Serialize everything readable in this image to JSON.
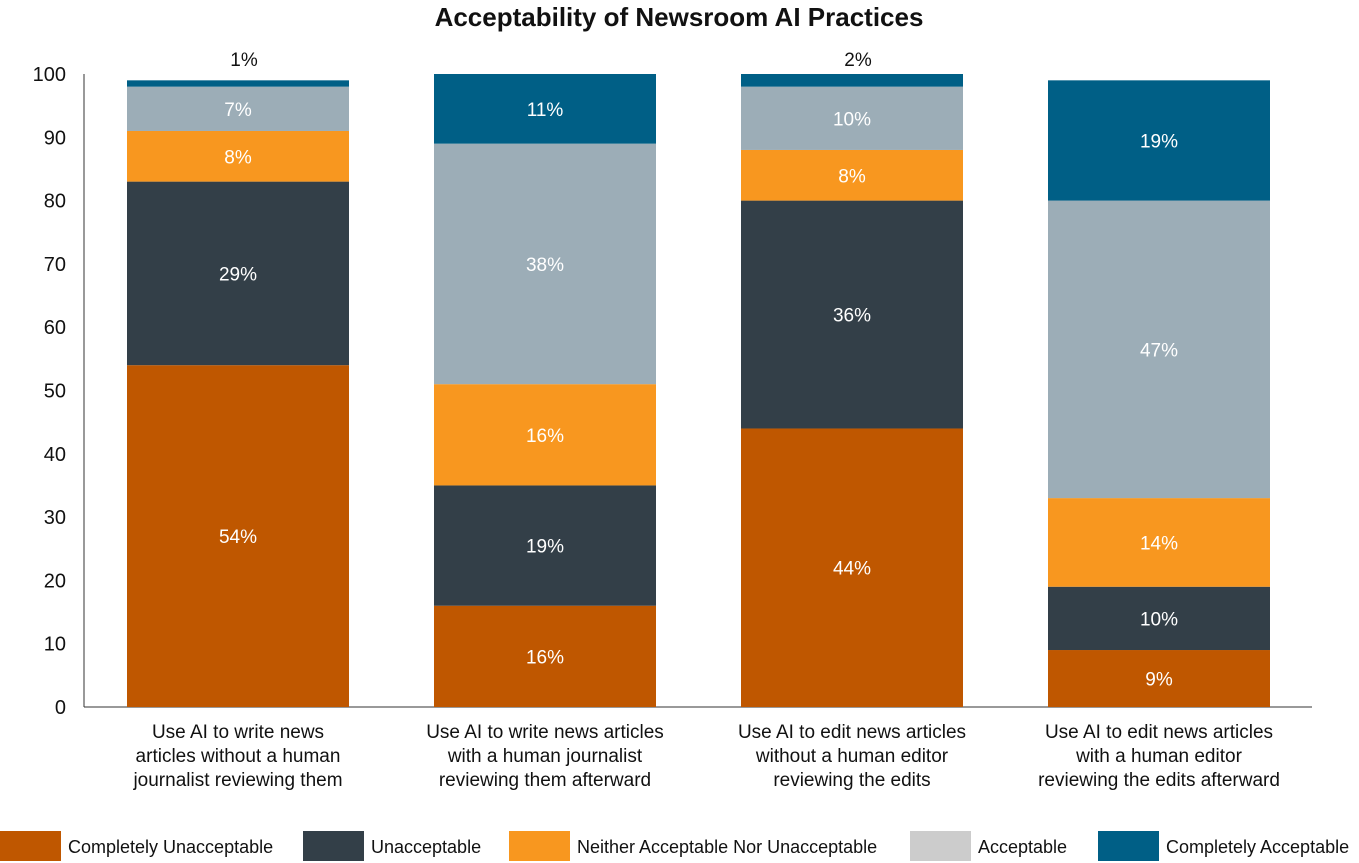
{
  "chart_data": {
    "type": "bar",
    "stacked": true,
    "title": "Acceptability of Newsroom AI Practices",
    "xlabel": "",
    "ylabel": "",
    "ylim": [
      0,
      100
    ],
    "yticks": [
      0,
      10,
      20,
      30,
      40,
      50,
      60,
      70,
      80,
      90,
      100
    ],
    "grid": false,
    "legend_position": "bottom",
    "categories": [
      [
        "Use AI to write news",
        "articles without a human",
        "journalist reviewing them"
      ],
      [
        "Use AI to write news articles",
        "with a human journalist",
        "reviewing them afterward"
      ],
      [
        "Use AI to edit news articles",
        "without a human editor",
        "reviewing the edits"
      ],
      [
        "Use AI to edit news articles",
        "with a human editor",
        "reviewing the edits afterward"
      ]
    ],
    "series": [
      {
        "name": "Completely Unacceptable",
        "color": "#bf5700",
        "label_color": "#ffffff",
        "values": [
          54,
          16,
          44,
          9
        ],
        "labels": [
          "54%",
          "16%",
          "44%",
          "9%"
        ]
      },
      {
        "name": "Unacceptable",
        "color": "#333f48",
        "label_color": "#ffffff",
        "values": [
          29,
          19,
          36,
          10
        ],
        "labels": [
          "29%",
          "19%",
          "36%",
          "10%"
        ]
      },
      {
        "name": "Neither Acceptable Nor Unacceptable",
        "color": "#f8971f",
        "label_color": "#ffffff",
        "values": [
          8,
          16,
          8,
          14
        ],
        "labels": [
          "8%",
          "16%",
          "8%",
          "14%"
        ]
      },
      {
        "name": "Acceptable",
        "color": "#9cadb7",
        "legend_color": "#cccccc",
        "label_color": "#ffffff",
        "values": [
          7,
          38,
          10,
          47
        ],
        "labels": [
          "7%",
          "38%",
          "10%",
          "47%"
        ]
      },
      {
        "name": "Completely Acceptable",
        "color": "#005f86",
        "label_color": "#ffffff",
        "values": [
          1,
          11,
          2,
          19
        ],
        "labels": [
          "1%",
          "11%",
          "2%",
          "19%"
        ]
      }
    ]
  }
}
